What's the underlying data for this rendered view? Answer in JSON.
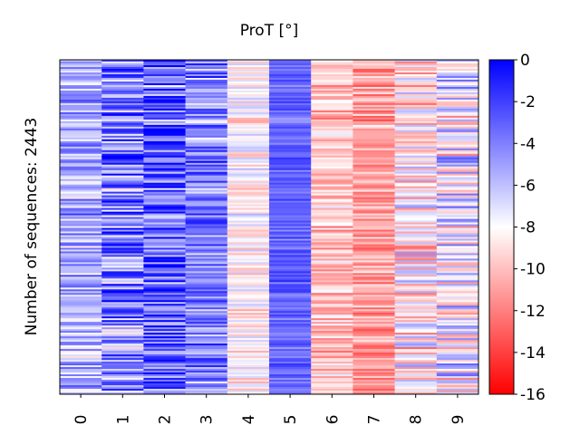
{
  "chart_data": {
    "type": "heatmap",
    "title": "ProT [°]",
    "ylabel": "Number of sequences: 2443",
    "xlabel": "",
    "categories": [
      "0",
      "1",
      "2",
      "3",
      "4",
      "5",
      "6",
      "7",
      "8",
      "9"
    ],
    "colorbar": {
      "ticks": [
        "0",
        "-2",
        "-4",
        "-6",
        "-8",
        "-10",
        "-12",
        "-14",
        "-16"
      ],
      "range": [
        -16,
        0
      ],
      "colormap": "bwr",
      "colors": {
        "high": "#0000ff",
        "mid": "#ffffff",
        "low": "#ff0000"
      }
    },
    "columns": [
      {
        "category": "0",
        "mean": -5.5,
        "spread": 2.8
      },
      {
        "category": "1",
        "mean": -4.0,
        "spread": 4.5
      },
      {
        "category": "2",
        "mean": -3.0,
        "spread": 4.0
      },
      {
        "category": "3",
        "mean": -4.0,
        "spread": 3.0
      },
      {
        "category": "4",
        "mean": -8.3,
        "spread": 1.8
      },
      {
        "category": "5",
        "mean": -3.2,
        "spread": 0.8
      },
      {
        "category": "6",
        "mean": -10.0,
        "spread": 2.0
      },
      {
        "category": "7",
        "mean": -11.0,
        "spread": 2.0
      },
      {
        "category": "8",
        "mean": -8.8,
        "spread": 3.5
      },
      {
        "category": "9",
        "mean": -7.5,
        "spread": 4.0
      }
    ],
    "n_rows_approx": 2443
  }
}
